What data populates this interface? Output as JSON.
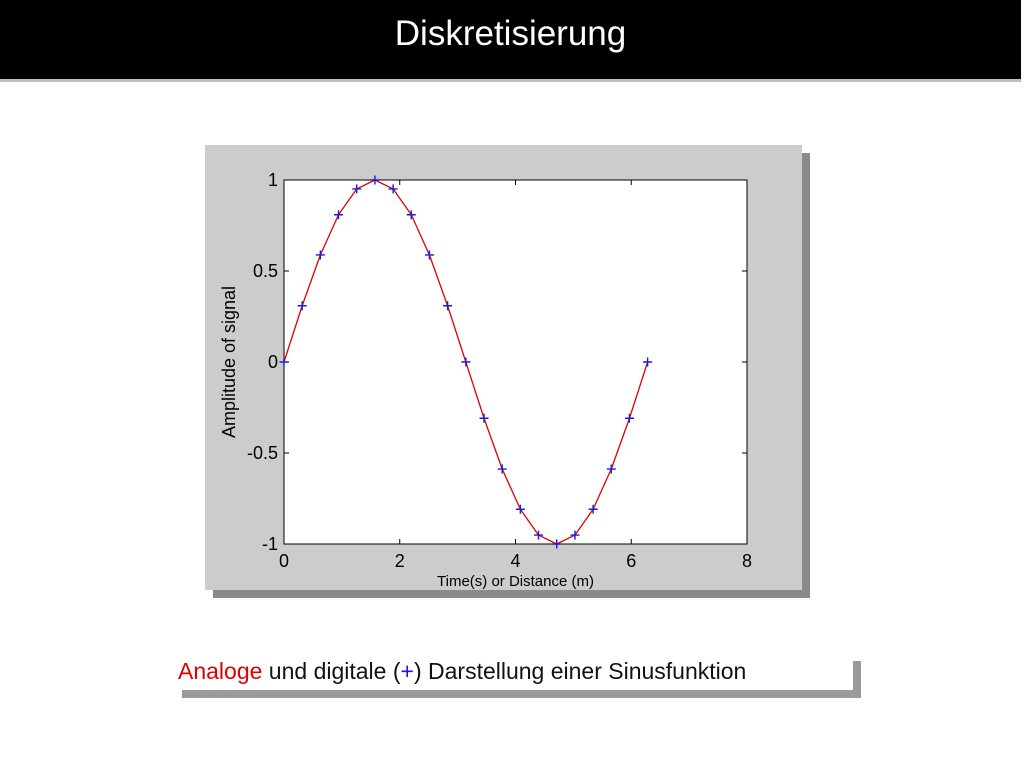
{
  "slide": {
    "title": "Diskretisierung"
  },
  "caption": {
    "part1": "Analoge",
    "part2": " und digitale (",
    "plus": "+",
    "part3": ") Darstellung einer Sinusfunktion"
  },
  "colors": {
    "analog": "#e00000",
    "digital": "#1a1ad6",
    "panel": "#cccccc",
    "title_bar": "#000000"
  },
  "chart_data": {
    "type": "line",
    "title": "",
    "xlabel": "Time(s) or Distance (m)",
    "ylabel": "Amplitude of signal",
    "xlim": [
      0,
      8
    ],
    "ylim": [
      -1,
      1
    ],
    "xticks": [
      0,
      2,
      4,
      6,
      8
    ],
    "yticks": [
      -1,
      -0.5,
      0,
      0.5,
      1
    ],
    "xtick_labels": [
      "0",
      "2",
      "4",
      "6",
      "8"
    ],
    "ytick_labels": [
      "-1",
      "-0.5",
      "0",
      "0.5",
      "1"
    ],
    "grid": false,
    "series": [
      {
        "kind": "line",
        "color": "#e00000",
        "x": [
          0,
          0.314,
          0.628,
          0.942,
          1.257,
          1.571,
          1.885,
          2.199,
          2.513,
          2.827,
          3.142,
          3.456,
          3.77,
          4.084,
          4.398,
          4.712,
          5.027,
          5.341,
          5.655,
          5.969,
          6.283
        ],
        "values": [
          0,
          0.309,
          0.588,
          0.809,
          0.951,
          1,
          0.951,
          0.809,
          0.588,
          0.309,
          0,
          -0.309,
          -0.588,
          -0.809,
          -0.951,
          -1,
          -0.951,
          -0.809,
          -0.588,
          -0.309,
          0
        ]
      },
      {
        "kind": "markers",
        "marker": "+",
        "color": "#1a1ad6",
        "x": [
          0,
          0.314,
          0.628,
          0.942,
          1.257,
          1.571,
          1.885,
          2.199,
          2.513,
          2.827,
          3.142,
          3.456,
          3.77,
          4.084,
          4.398,
          4.712,
          5.027,
          5.341,
          5.655,
          5.969,
          6.283
        ],
        "values": [
          0,
          0.309,
          0.588,
          0.809,
          0.951,
          1,
          0.951,
          0.809,
          0.588,
          0.309,
          0,
          -0.309,
          -0.588,
          -0.809,
          -0.951,
          -1,
          -0.951,
          -0.809,
          -0.588,
          -0.309,
          0
        ]
      }
    ]
  }
}
